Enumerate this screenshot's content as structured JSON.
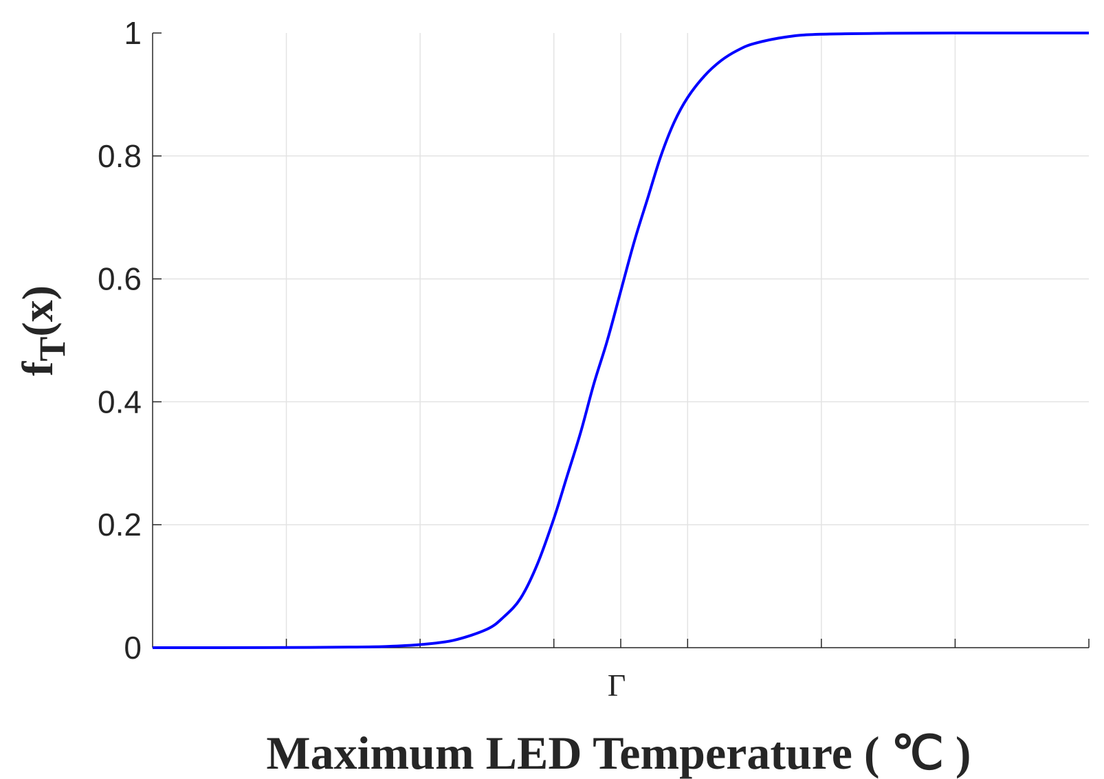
{
  "chart_data": {
    "type": "line",
    "xlabel": "Maximum LED Temperature (  ℃ )",
    "ylabel_main": "f",
    "ylabel_sub": "T",
    "ylabel_tail": "(x)",
    "xlim": [
      0,
      14
    ],
    "ylim": [
      0,
      1
    ],
    "xtick_positions": [
      2,
      4,
      6,
      7,
      8,
      10,
      12,
      14
    ],
    "xtick_labels": [
      {
        "x": 7,
        "label": "Γ"
      }
    ],
    "yticks": [
      0,
      0.2,
      0.4,
      0.6,
      0.8,
      1
    ],
    "ytick_labels": [
      "0",
      "0.2",
      "0.4",
      "0.6",
      "0.8",
      "1"
    ],
    "grid": true,
    "series": [
      {
        "color": "#0000ff",
        "x": [
          0,
          1,
          2,
          3,
          3.5,
          4,
          4.5,
          5,
          5.25,
          5.5,
          5.75,
          6,
          6.2,
          6.4,
          6.6,
          6.8,
          7,
          7.2,
          7.4,
          7.6,
          7.8,
          8,
          8.25,
          8.5,
          8.75,
          9,
          9.5,
          10,
          11,
          12,
          13,
          14
        ],
        "y": [
          0,
          0,
          0.0002,
          0.001,
          0.002,
          0.005,
          0.012,
          0.03,
          0.05,
          0.08,
          0.135,
          0.21,
          0.28,
          0.35,
          0.43,
          0.5,
          0.58,
          0.66,
          0.73,
          0.8,
          0.855,
          0.895,
          0.93,
          0.955,
          0.972,
          0.983,
          0.994,
          0.998,
          0.9995,
          1,
          1,
          1
        ]
      }
    ]
  }
}
